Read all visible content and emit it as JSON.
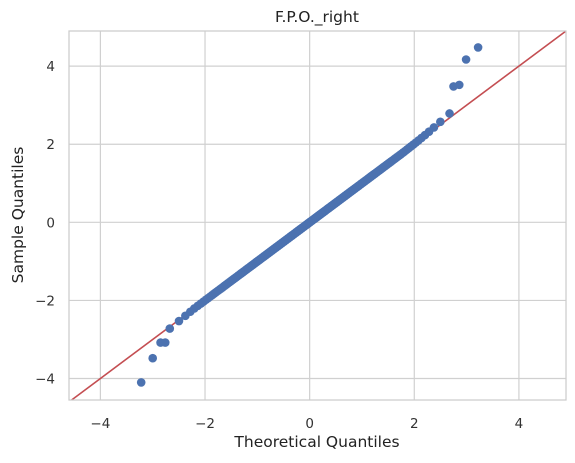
{
  "chart_data": {
    "type": "scatter",
    "title": "F.P.O._right",
    "xlabel": "Theoretical Quantiles",
    "ylabel": "Sample Quantiles",
    "xlim": [
      -4.6,
      4.9
    ],
    "ylim": [
      -4.55,
      4.9
    ],
    "xticks": [
      -4,
      -2,
      0,
      2,
      4
    ],
    "yticks": [
      -4,
      -2,
      0,
      2,
      4
    ],
    "grid": true,
    "point_color": "#4c72b0",
    "line_color": "#c44e52",
    "reference_line": {
      "slope": 1,
      "intercept": 0
    },
    "n_points": 400,
    "outlier_points": [
      {
        "x": -3.22,
        "y": -4.1
      },
      {
        "x": -3.0,
        "y": -3.48
      },
      {
        "x": -2.85,
        "y": -3.08
      },
      {
        "x": -2.76,
        "y": -3.08
      },
      {
        "x": 2.75,
        "y": 3.48
      },
      {
        "x": 2.86,
        "y": 3.52
      },
      {
        "x": 2.99,
        "y": 4.17
      },
      {
        "x": 3.22,
        "y": 4.48
      }
    ]
  }
}
